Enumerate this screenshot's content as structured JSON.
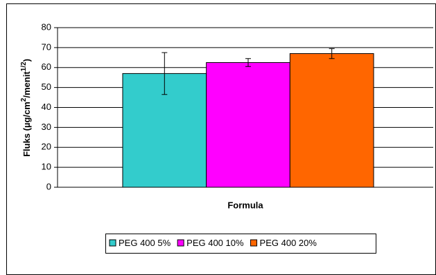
{
  "chart_data": {
    "type": "bar",
    "y_label_parts": [
      "Fluks (µg/cm",
      "2",
      "/menit",
      "1/2",
      ")"
    ],
    "x_label": "Formula",
    "categories": [
      null
    ],
    "series": [
      {
        "name": "PEG 400 5%",
        "color": "#33cccc",
        "values": [
          57
        ],
        "errors": [
          10.5
        ]
      },
      {
        "name": "PEG 400 10%",
        "color": "#ff00ff",
        "values": [
          62.5
        ],
        "errors": [
          2
        ]
      },
      {
        "name": "PEG 400 20%",
        "color": "#ff6600",
        "values": [
          67
        ],
        "errors": [
          2.5
        ]
      }
    ],
    "ylim": [
      0,
      80
    ],
    "yticks": [
      0,
      10,
      20,
      30,
      40,
      50,
      60,
      70,
      80
    ],
    "grid": true,
    "legend": "bottom"
  }
}
